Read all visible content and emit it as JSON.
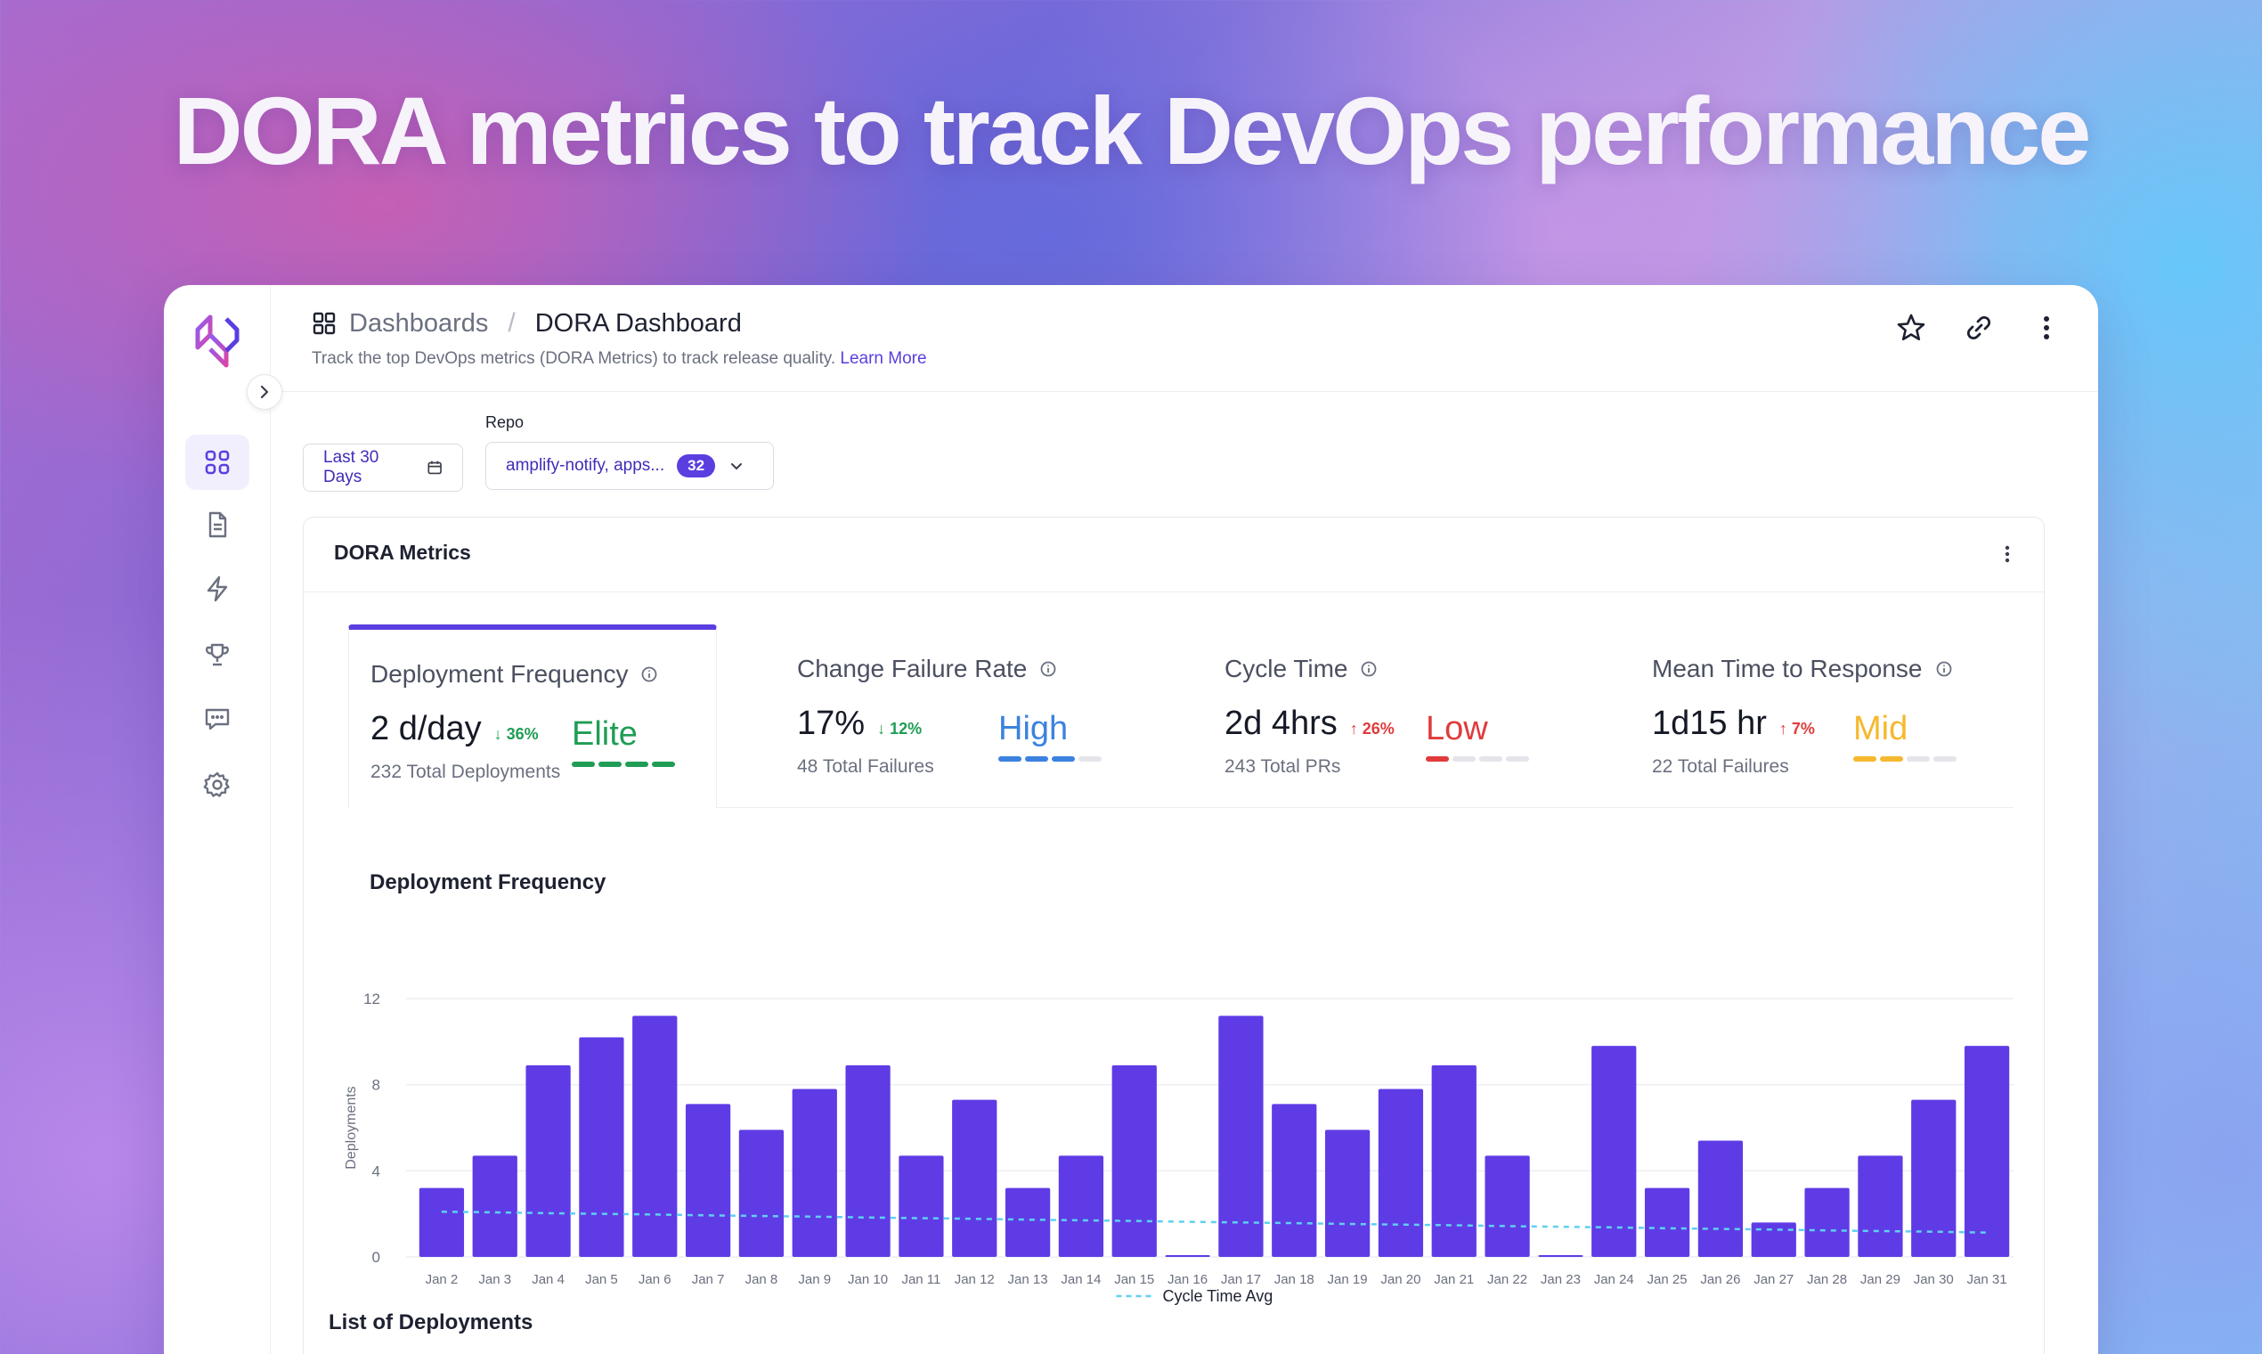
{
  "hero": {
    "title": "DORA metrics to track DevOps performance"
  },
  "breadcrumb": {
    "parent": "Dashboards",
    "separator": "/",
    "current": "DORA Dashboard"
  },
  "subtitle": {
    "text": "Track the top DevOps metrics (DORA Metrics) to track release quality.",
    "link": "Learn More"
  },
  "filters": {
    "date_range": "Last 30 Days",
    "repo_label": "Repo",
    "repo_value": "amplify-notify, apps...",
    "repo_count": "32"
  },
  "card": {
    "title": "DORA Metrics"
  },
  "metrics": [
    {
      "name": "Deployment Frequency",
      "value": "2 d/day",
      "delta": "↓ 36%",
      "delta_dir": "down",
      "sub": "232 Total Deployments",
      "level": "Elite",
      "level_color": "#1f9d55",
      "level_score": 4
    },
    {
      "name": "Change Failure Rate",
      "value": "17%",
      "delta": "↓ 12%",
      "delta_dir": "down",
      "sub": "48 Total Failures",
      "level": "High",
      "level_color": "#3b82e0",
      "level_score": 3
    },
    {
      "name": "Cycle Time",
      "value": "2d 4hrs",
      "delta": "↑ 26%",
      "delta_dir": "up",
      "sub": "243 Total PRs",
      "level": "Low",
      "level_color": "#e03b3b",
      "level_score": 1
    },
    {
      "name": "Mean Time to Response",
      "value": "1d15 hr",
      "delta": "↑ 7%",
      "delta_dir": "up",
      "sub": "22 Total Failures",
      "level": "Mid",
      "level_color": "#f5b82e",
      "level_score": 2
    }
  ],
  "list": {
    "title": "List of Deployments"
  },
  "colors": {
    "accent": "#5b3ee0",
    "bar": "#5f3be6",
    "avg_line": "#5fd0f0"
  },
  "chart_data": {
    "type": "bar",
    "title": "Deployment Frequency",
    "ylabel": "Deployments",
    "xlabel": "",
    "ylim": [
      0,
      12
    ],
    "yticks": [
      0,
      4,
      8,
      12
    ],
    "grid": true,
    "legend_position": "bottom",
    "categories": [
      "Jan 2",
      "Jan 3",
      "Jan 4",
      "Jan 5",
      "Jan 6",
      "Jan 7",
      "Jan 8",
      "Jan 9",
      "Jan 10",
      "Jan 11",
      "Jan 12",
      "Jan 13",
      "Jan 14",
      "Jan 15",
      "Jan 16",
      "Jan 17",
      "Jan 18",
      "Jan 19",
      "Jan 20",
      "Jan 21",
      "Jan 22",
      "Jan 23",
      "Jan 24",
      "Jan 25",
      "Jan 26",
      "Jan 27",
      "Jan 28",
      "Jan 29",
      "Jan 30",
      "Jan 31"
    ],
    "series": [
      {
        "type": "bar",
        "values": [
          3.2,
          4.7,
          8.9,
          10.2,
          11.2,
          7.1,
          5.9,
          7.8,
          8.9,
          4.7,
          7.3,
          3.2,
          4.7,
          8.9,
          0,
          11.2,
          7.1,
          5.9,
          7.8,
          8.9,
          4.7,
          0,
          9.8,
          3.2,
          5.4,
          1.6,
          3.2,
          4.7,
          7.3,
          9.8
        ]
      },
      {
        "type": "line",
        "name": "Cycle Time Avg",
        "values": [
          2.1,
          2.07,
          2.03,
          2.0,
          1.97,
          1.93,
          1.9,
          1.87,
          1.83,
          1.8,
          1.77,
          1.73,
          1.7,
          1.67,
          1.63,
          1.6,
          1.57,
          1.53,
          1.5,
          1.47,
          1.43,
          1.4,
          1.37,
          1.33,
          1.3,
          1.27,
          1.23,
          1.2,
          1.17,
          1.13
        ]
      }
    ]
  }
}
